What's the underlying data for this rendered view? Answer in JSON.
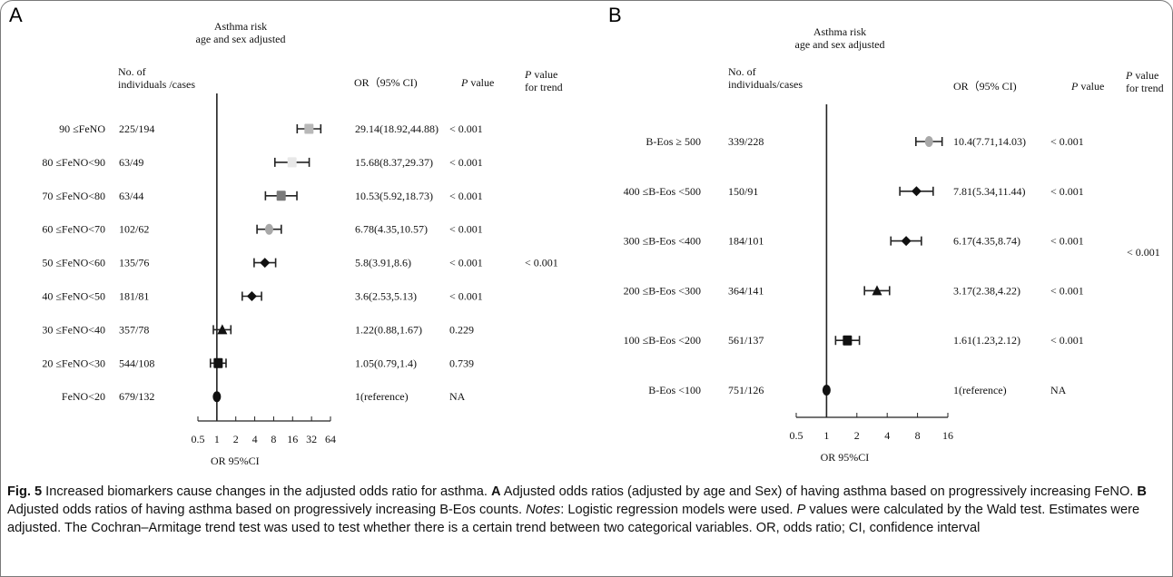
{
  "chart_data": [
    {
      "type": "forest",
      "panel_label": "A",
      "title_line1": "Asthma risk",
      "title_line2": "age and sex adjusted",
      "col_n_line1": "No. of",
      "col_n_line2": "individuals /cases",
      "col_or": "OR（95% CI)",
      "col_p": "P",
      "col_p_suffix": " value",
      "col_trend_line1": "P",
      "col_trend_line1_suffix": " value",
      "col_trend_line2": "for trend",
      "xlabel": "OR 95%CI",
      "xscale": "log2",
      "xlim": [
        0.5,
        64
      ],
      "xticks": [
        "0.5",
        "1",
        "2",
        "4",
        "8",
        "16",
        "32",
        "64"
      ],
      "ref_line": 1,
      "trend_p": "< 0.001",
      "rows": [
        {
          "label": "90 ≤FeNO",
          "n": "225/194",
          "or": 29.14,
          "lo": 18.92,
          "hi": 44.88,
          "or_text": "29.14(18.92,44.88)",
          "p": "< 0.001",
          "marker": "square",
          "color": "#b8b8b8"
        },
        {
          "label": "80 ≤FeNO<90",
          "n": "63/49",
          "or": 15.68,
          "lo": 8.37,
          "hi": 29.37,
          "or_text": "15.68(8.37,29.37)",
          "p": "< 0.001",
          "marker": "square",
          "color": "#e8e8e8"
        },
        {
          "label": "70 ≤FeNO<80",
          "n": "63/44",
          "or": 10.53,
          "lo": 5.92,
          "hi": 18.73,
          "or_text": "10.53(5.92,18.73)",
          "p": "< 0.001",
          "marker": "square",
          "color": "#7a7a7a"
        },
        {
          "label": "60 ≤FeNO<70",
          "n": "102/62",
          "or": 6.78,
          "lo": 4.35,
          "hi": 10.57,
          "or_text": "6.78(4.35,10.57)",
          "p": "< 0.001",
          "marker": "circle",
          "color": "#a8a8a8"
        },
        {
          "label": "50 ≤FeNO<60",
          "n": "135/76",
          "or": 5.8,
          "lo": 3.91,
          "hi": 8.6,
          "or_text": "5.8(3.91,8.6)",
          "p": "< 0.001",
          "marker": "diamond",
          "color": "#111111"
        },
        {
          "label": "40 ≤FeNO<50",
          "n": "181/81",
          "or": 3.6,
          "lo": 2.53,
          "hi": 5.13,
          "or_text": "3.6(2.53,5.13)",
          "p": "< 0.001",
          "marker": "diamond",
          "color": "#111111"
        },
        {
          "label": "30 ≤FeNO<40",
          "n": "357/78",
          "or": 1.22,
          "lo": 0.88,
          "hi": 1.67,
          "or_text": "1.22(0.88,1.67)",
          "p": "0.229",
          "marker": "triangle",
          "color": "#111111"
        },
        {
          "label": "20 ≤FeNO<30",
          "n": "544/108",
          "or": 1.05,
          "lo": 0.79,
          "hi": 1.4,
          "or_text": "1.05(0.79,1.4)",
          "p": "0.739",
          "marker": "square",
          "color": "#111111"
        },
        {
          "label": "FeNO<20",
          "n": "679/132",
          "or": 1,
          "lo": null,
          "hi": null,
          "or_text": "1(reference)",
          "p": "NA",
          "marker": "circle",
          "color": "#111111"
        }
      ]
    },
    {
      "type": "forest",
      "panel_label": "B",
      "title_line1": "Asthma risk",
      "title_line2": "age and sex adjusted",
      "col_n_line1": "No. of",
      "col_n_line2": "individuals/cases",
      "col_or": "OR（95% CI)",
      "col_p": "P",
      "col_p_suffix": " value",
      "col_trend_line1": "P",
      "col_trend_line1_suffix": " value",
      "col_trend_line2": "for trend",
      "xlabel": "OR 95%CI",
      "xscale": "log2",
      "xlim": [
        0.5,
        16
      ],
      "xticks": [
        "0.5",
        "1",
        "2",
        "4",
        "8",
        "16"
      ],
      "ref_line": 1,
      "trend_p": "< 0.001",
      "rows": [
        {
          "label": "B-Eos ≥ 500",
          "n": "339/228",
          "or": 10.4,
          "lo": 7.71,
          "hi": 14.03,
          "or_text": "10.4(7.71,14.03)",
          "p": "< 0.001",
          "marker": "circle",
          "color": "#a8a8a8"
        },
        {
          "label": "400 ≤B-Eos <500",
          "n": "150/91",
          "or": 7.81,
          "lo": 5.34,
          "hi": 11.44,
          "or_text": "7.81(5.34,11.44)",
          "p": "< 0.001",
          "marker": "diamond",
          "color": "#111111"
        },
        {
          "label": "300 ≤B-Eos <400",
          "n": "184/101",
          "or": 6.17,
          "lo": 4.35,
          "hi": 8.74,
          "or_text": "6.17(4.35,8.74)",
          "p": "< 0.001",
          "marker": "diamond",
          "color": "#111111"
        },
        {
          "label": "200 ≤B-Eos <300",
          "n": "364/141",
          "or": 3.17,
          "lo": 2.38,
          "hi": 4.22,
          "or_text": "3.17(2.38,4.22)",
          "p": "< 0.001",
          "marker": "triangle",
          "color": "#111111"
        },
        {
          "label": "100 ≤B-Eos <200",
          "n": "561/137",
          "or": 1.61,
          "lo": 1.23,
          "hi": 2.12,
          "or_text": "1.61(1.23,2.12)",
          "p": "< 0.001",
          "marker": "square",
          "color": "#111111"
        },
        {
          "label": "B-Eos <100",
          "n": "751/126",
          "or": 1,
          "lo": null,
          "hi": null,
          "or_text": "1(reference)",
          "p": "NA",
          "marker": "circle",
          "color": "#111111"
        }
      ]
    }
  ],
  "caption": {
    "fig_label": "Fig. 5",
    "title": "  Increased biomarkers cause changes in the adjusted odds ratio for asthma. ",
    "a_label": "A",
    "a_text": " Adjusted odds ratios (adjusted by age and Sex) of having asthma based on progressively increasing FeNO. ",
    "b_label": "B",
    "b_text": " Adjusted odds ratios of having asthma based on progressively increasing B-Eos counts. ",
    "notes_label": "Notes",
    "notes_text": ": Logistic regression models were used. ",
    "p_label": "P",
    "p_text": " values were calculated by the Wald test. Estimates were adjusted. The Cochran–Armitage trend test was used to test whether there is a certain trend between two categorical variables. OR, odds ratio; CI, confidence interval"
  }
}
